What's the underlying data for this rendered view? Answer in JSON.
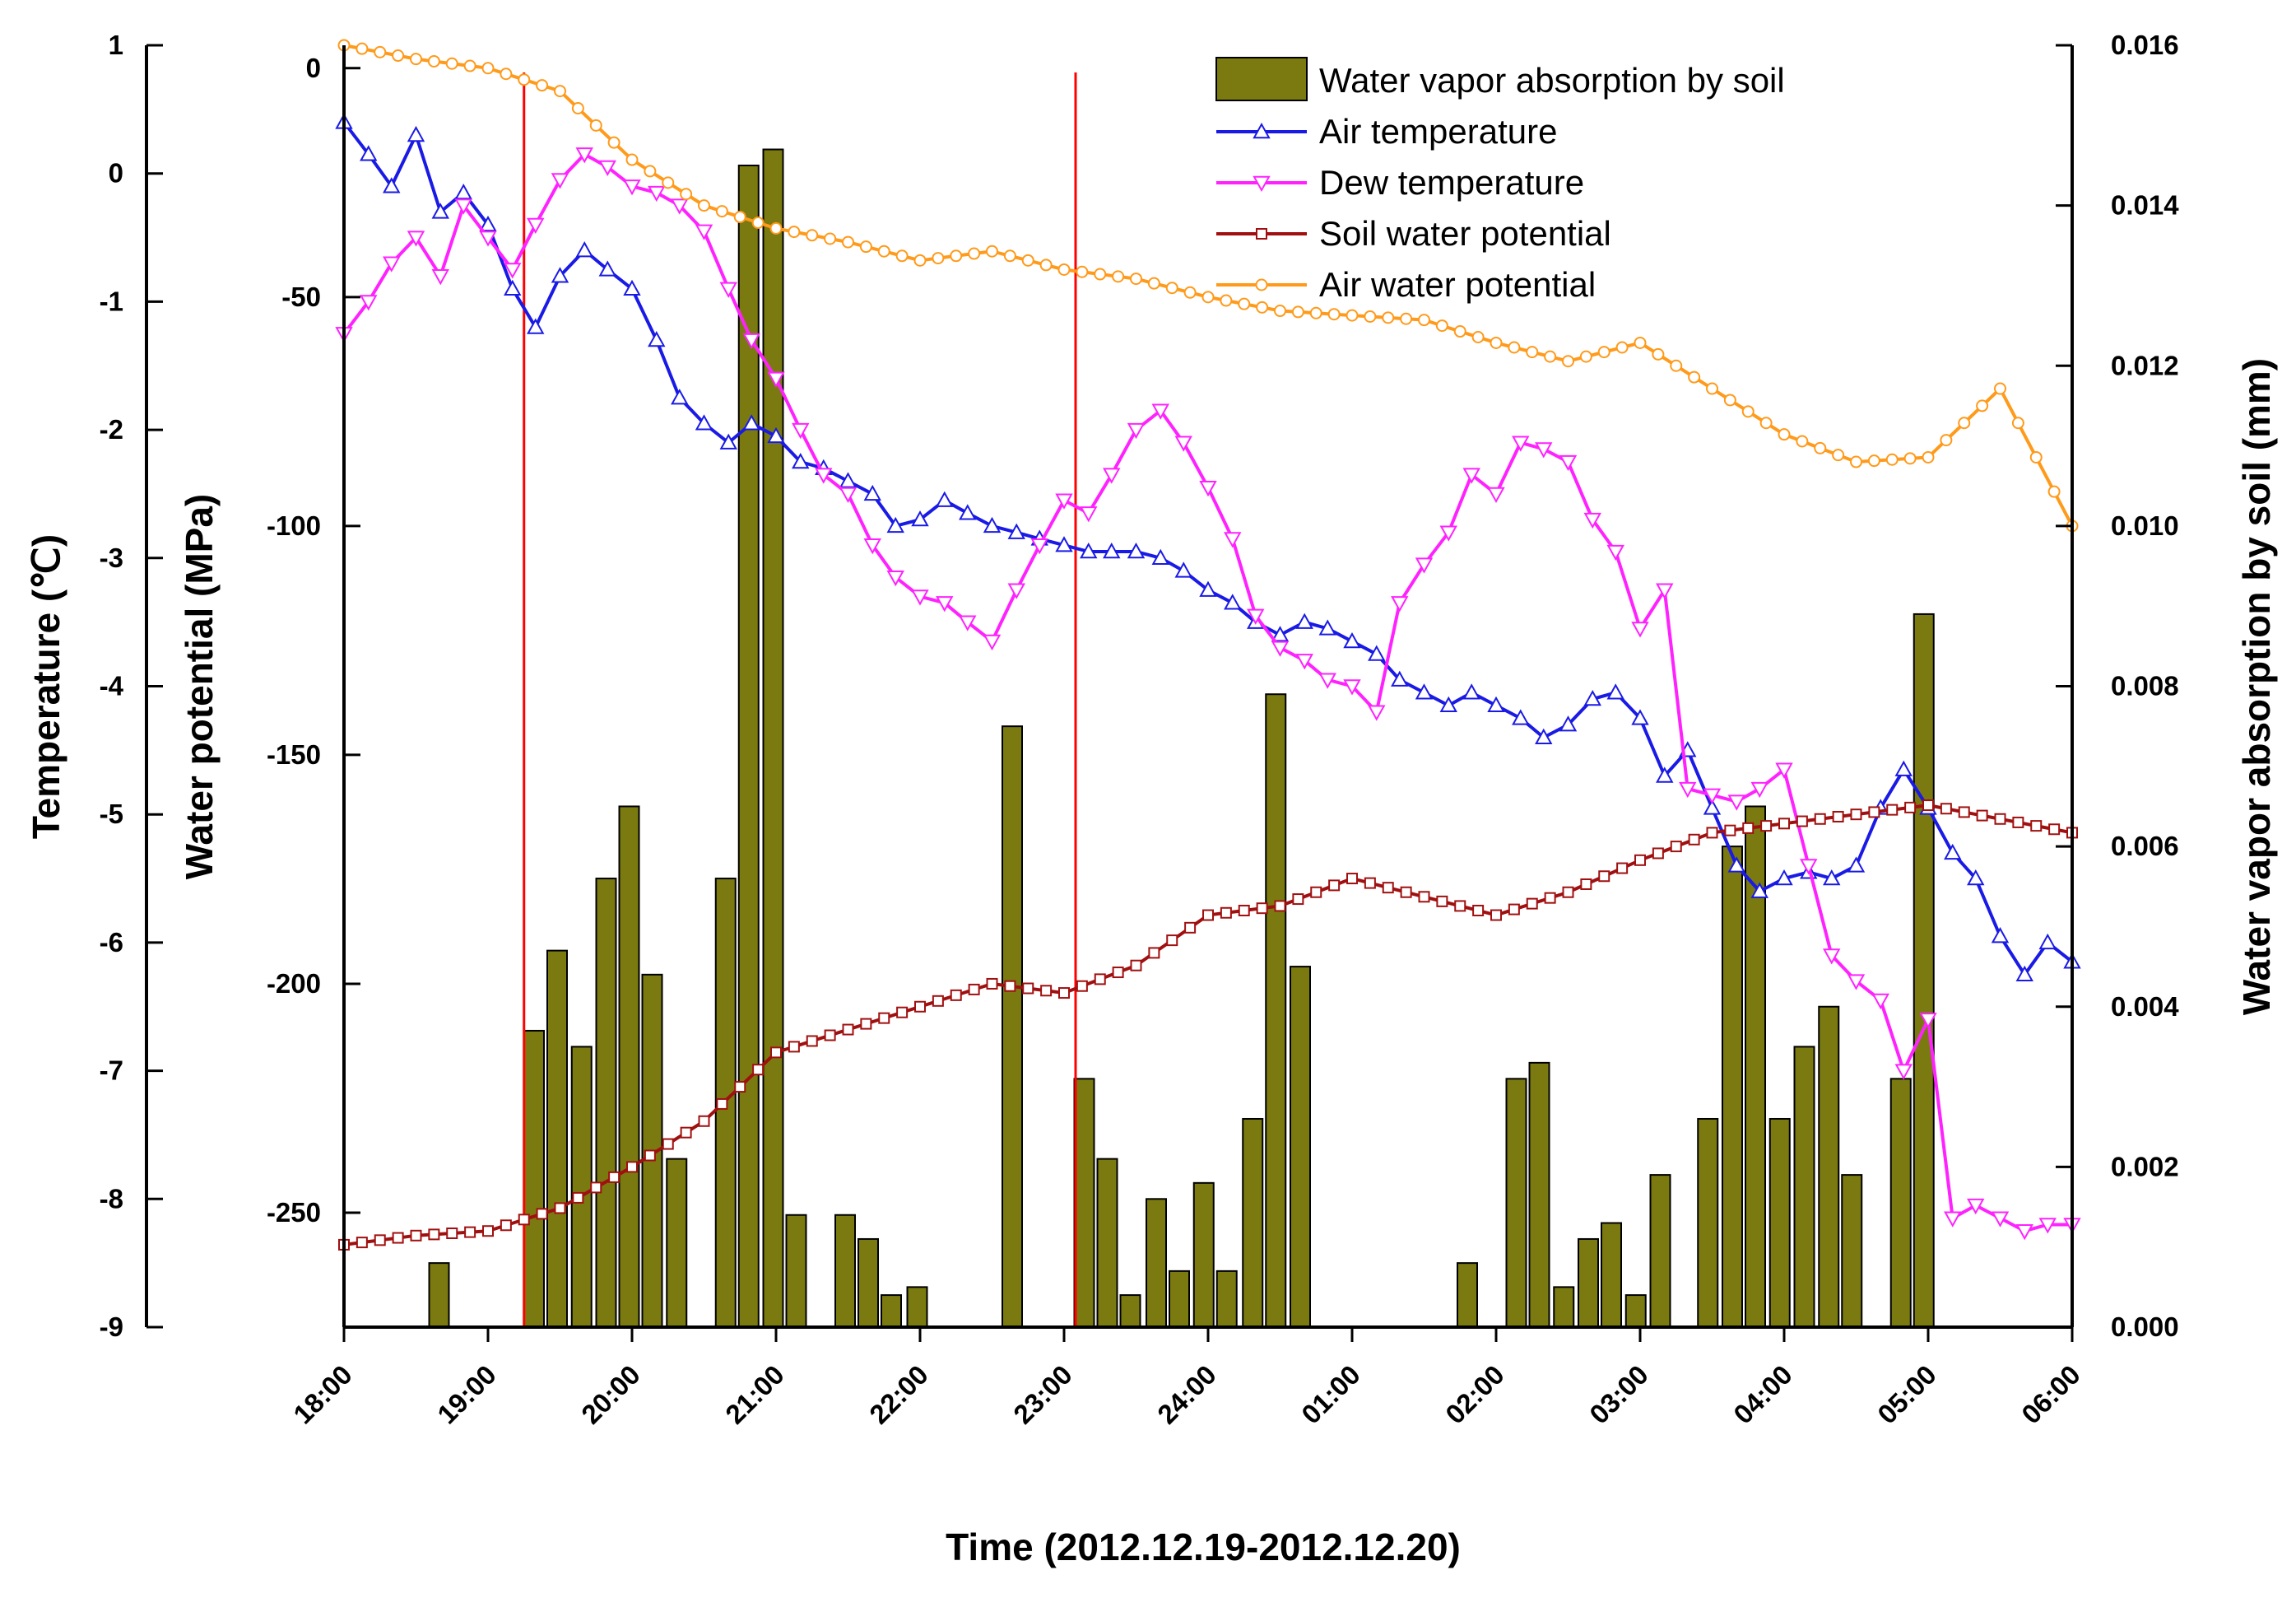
{
  "chart_data": {
    "type": "line",
    "title": "",
    "xlabel": "Time (2012.12.19-2012.12.20)",
    "ylabel_temperature": "Temperature (℃)",
    "ylabel_water_potential": "Water potential (MPa)",
    "ylabel_right": "Water vapor absorption by soil (mm)",
    "x_ticks": [
      "18:00",
      "19:00",
      "20:00",
      "21:00",
      "22:00",
      "23:00",
      "24:00",
      "01:00",
      "02:00",
      "03:00",
      "04:00",
      "05:00",
      "06:00"
    ],
    "x_range_hours": [
      0,
      12
    ],
    "temperature_axis": {
      "range": [
        -9,
        1
      ],
      "ticks": [
        "1",
        "0",
        "-1",
        "-2",
        "-3",
        "-4",
        "-5",
        "-6",
        "-7",
        "-8",
        "-9"
      ]
    },
    "water_potential_axis": {
      "range": [
        -275,
        5
      ],
      "ticks": [
        "0",
        "-50",
        "-100",
        "-150",
        "-200",
        "-250"
      ]
    },
    "absorption_axis": {
      "range": [
        0,
        0.016
      ],
      "ticks": [
        "0.016",
        "0.014",
        "0.012",
        "0.010",
        "0.008",
        "0.006",
        "0.004",
        "0.002",
        "0.000"
      ]
    },
    "vertical_markers_hours": [
      1.25,
      5.08
    ],
    "legend": [
      {
        "key": "absorption",
        "label": "Water vapor absorption by soil",
        "color": "#7a7a10",
        "marker": "bar"
      },
      {
        "key": "air_temp",
        "label": "Air temperature",
        "color": "#1a1ae6",
        "marker": "triangle-up"
      },
      {
        "key": "dew_temp",
        "label": "Dew temperature",
        "color": "#ff22ff",
        "marker": "triangle-down"
      },
      {
        "key": "soil_wp",
        "label": "Soil water potential",
        "color": "#a01010",
        "marker": "square"
      },
      {
        "key": "air_wp",
        "label": "Air water potential",
        "color": "#ff9a1a",
        "marker": "circle"
      }
    ],
    "marker_color": "#ff0000",
    "series": [
      {
        "name": "Air temperature",
        "key": "air_temp",
        "axis": "temperature",
        "x": [
          0,
          0.17,
          0.33,
          0.5,
          0.67,
          0.83,
          1.0,
          1.17,
          1.33,
          1.5,
          1.67,
          1.83,
          2.0,
          2.17,
          2.33,
          2.5,
          2.67,
          2.83,
          3.0,
          3.17,
          3.33,
          3.5,
          3.67,
          3.83,
          4.0,
          4.17,
          4.33,
          4.5,
          4.67,
          4.83,
          5.0,
          5.17,
          5.33,
          5.5,
          5.67,
          5.83,
          6.0,
          6.17,
          6.33,
          6.5,
          6.67,
          6.83,
          7.0,
          7.17,
          7.33,
          7.5,
          7.67,
          7.83,
          8.0,
          8.17,
          8.33,
          8.5,
          8.67,
          8.83,
          9.0,
          9.17,
          9.33,
          9.5,
          9.67,
          9.83,
          10.0,
          10.17,
          10.33,
          10.5,
          10.67,
          10.83,
          11.0,
          11.17,
          11.33,
          11.5,
          11.67,
          11.83,
          12.0
        ],
        "values": [
          0.4,
          0.15,
          -0.1,
          0.3,
          -0.3,
          -0.15,
          -0.4,
          -0.9,
          -1.2,
          -0.8,
          -0.6,
          -0.75,
          -0.9,
          -1.3,
          -1.75,
          -1.95,
          -2.1,
          -1.95,
          -2.05,
          -2.25,
          -2.3,
          -2.4,
          -2.5,
          -2.75,
          -2.7,
          -2.55,
          -2.65,
          -2.75,
          -2.8,
          -2.85,
          -2.9,
          -2.95,
          -2.95,
          -2.95,
          -3.0,
          -3.1,
          -3.25,
          -3.35,
          -3.5,
          -3.6,
          -3.5,
          -3.55,
          -3.65,
          -3.75,
          -3.95,
          -4.05,
          -4.15,
          -4.05,
          -4.15,
          -4.25,
          -4.4,
          -4.3,
          -4.1,
          -4.05,
          -4.25,
          -4.7,
          -4.5,
          -4.95,
          -5.4,
          -5.6,
          -5.5,
          -5.45,
          -5.5,
          -5.4,
          -4.95,
          -4.65,
          -4.95,
          -5.3,
          -5.5,
          -5.95,
          -6.25,
          -6.0,
          -6.15
        ]
      },
      {
        "name": "Dew temperature",
        "key": "dew_temp",
        "axis": "temperature",
        "x": [
          0,
          0.17,
          0.33,
          0.5,
          0.67,
          0.83,
          1.0,
          1.17,
          1.33,
          1.5,
          1.67,
          1.83,
          2.0,
          2.17,
          2.33,
          2.5,
          2.67,
          2.83,
          3.0,
          3.17,
          3.33,
          3.5,
          3.67,
          3.83,
          4.0,
          4.17,
          4.33,
          4.5,
          4.67,
          4.83,
          5.0,
          5.17,
          5.33,
          5.5,
          5.67,
          5.83,
          6.0,
          6.17,
          6.33,
          6.5,
          6.67,
          6.83,
          7.0,
          7.17,
          7.33,
          7.5,
          7.67,
          7.83,
          8.0,
          8.17,
          8.33,
          8.5,
          8.67,
          8.83,
          9.0,
          9.17,
          9.33,
          9.5,
          9.67,
          9.83,
          10.0,
          10.17,
          10.33,
          10.5,
          10.67,
          10.83,
          11.0,
          11.17,
          11.33,
          11.5,
          11.67,
          11.83,
          12.0
        ],
        "values": [
          -1.25,
          -1.0,
          -0.7,
          -0.5,
          -0.8,
          -0.25,
          -0.5,
          -0.75,
          -0.4,
          -0.05,
          0.15,
          0.05,
          -0.1,
          -0.15,
          -0.25,
          -0.45,
          -0.9,
          -1.3,
          -1.6,
          -2.0,
          -2.35,
          -2.5,
          -2.9,
          -3.15,
          -3.3,
          -3.35,
          -3.5,
          -3.65,
          -3.25,
          -2.9,
          -2.55,
          -2.65,
          -2.35,
          -2.0,
          -1.85,
          -2.1,
          -2.45,
          -2.85,
          -3.45,
          -3.7,
          -3.8,
          -3.95,
          -4.0,
          -4.2,
          -3.35,
          -3.05,
          -2.8,
          -2.35,
          -2.5,
          -2.1,
          -2.15,
          -2.25,
          -2.7,
          -2.95,
          -3.55,
          -3.25,
          -4.8,
          -4.85,
          -4.9,
          -4.8,
          -4.65,
          -5.4,
          -6.1,
          -6.3,
          -6.45,
          -7.0,
          -6.6,
          -8.15,
          -8.05,
          -8.15,
          -8.25,
          -8.2,
          -8.2
        ]
      },
      {
        "name": "Soil water potential",
        "key": "soil_wp",
        "axis": "water_potential",
        "x": [
          0,
          0.5,
          1.0,
          1.5,
          2.0,
          2.5,
          3.0,
          3.5,
          4.0,
          4.5,
          5.0,
          5.5,
          6.0,
          6.5,
          7.0,
          7.5,
          8.0,
          8.5,
          9.0,
          9.5,
          10.0,
          10.5,
          11.0,
          11.5,
          12.0
        ],
        "values": [
          -257,
          -255,
          -254,
          -249,
          -240,
          -230,
          -215,
          -210,
          -205,
          -200,
          -202,
          -196,
          -185,
          -183,
          -177,
          -181,
          -185,
          -180,
          -173,
          -167,
          -165,
          -163,
          -161,
          -164,
          -167
        ]
      },
      {
        "name": "Air water potential",
        "key": "air_wp",
        "axis": "water_potential",
        "x": [
          0,
          0.5,
          1.0,
          1.5,
          2.0,
          2.5,
          3.0,
          3.5,
          4.0,
          4.5,
          5.0,
          5.5,
          6.0,
          6.5,
          7.0,
          7.5,
          8.0,
          8.5,
          9.0,
          9.5,
          10.0,
          10.5,
          11.0,
          11.5,
          12.0
        ],
        "values": [
          5,
          2,
          0,
          -5,
          -20,
          -30,
          -35,
          -38,
          -42,
          -40,
          -44,
          -46,
          -50,
          -53,
          -54,
          -55,
          -60,
          -64,
          -60,
          -70,
          -80,
          -86,
          -85,
          -70,
          -100
        ]
      }
    ],
    "absorption_bars": {
      "name": "Water vapor absorption by soil",
      "axis": "absorption",
      "x": [
        0.66,
        1.32,
        1.48,
        1.65,
        1.82,
        1.98,
        2.14,
        2.31,
        2.65,
        2.81,
        2.98,
        3.14,
        3.48,
        3.64,
        3.8,
        3.98,
        4.64,
        5.14,
        5.3,
        5.46,
        5.64,
        5.8,
        5.97,
        6.13,
        6.31,
        6.47,
        6.64,
        7.8,
        8.14,
        8.3,
        8.47,
        8.64,
        8.8,
        8.97,
        9.14,
        9.47,
        9.64,
        9.8,
        9.97,
        10.14,
        10.31,
        10.47,
        10.81,
        10.97
      ],
      "values": [
        0.0008,
        0.0037,
        0.0047,
        0.0035,
        0.0056,
        0.0065,
        0.0044,
        0.0021,
        0.0056,
        0.0145,
        0.0147,
        0.0014,
        0.0014,
        0.0011,
        0.0004,
        0.0005,
        0.0075,
        0.0031,
        0.0021,
        0.0004,
        0.0016,
        0.0007,
        0.0018,
        0.0007,
        0.0026,
        0.0079,
        0.0045,
        0.0008,
        0.0031,
        0.0033,
        0.0005,
        0.0011,
        0.0013,
        0.0004,
        0.0019,
        0.0026,
        0.006,
        0.0065,
        0.0026,
        0.0035,
        0.004,
        0.0019,
        0.0031,
        0.0089
      ]
    }
  }
}
